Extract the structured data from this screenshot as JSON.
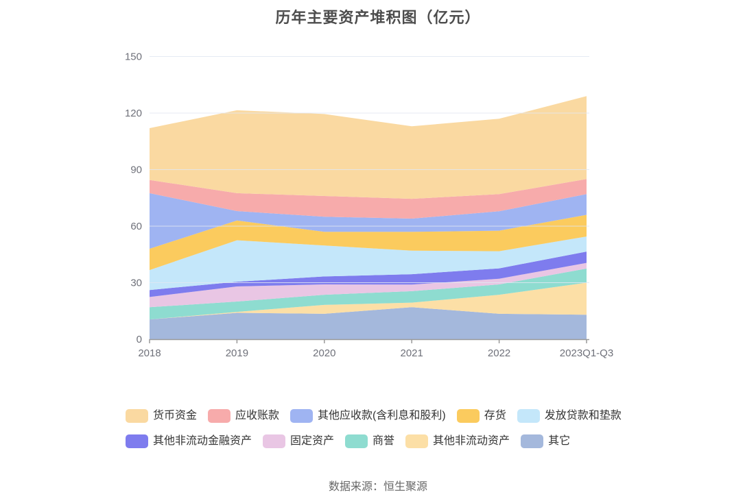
{
  "title": "历年主要资产堆积图（亿元）",
  "source": "数据来源：恒生聚源",
  "chart_data": {
    "type": "area",
    "stacked": true,
    "unit": "亿元",
    "title": "历年主要资产堆积图（亿元）",
    "categories": [
      "2018",
      "2019",
      "2020",
      "2021",
      "2022",
      "2023Q1-Q3"
    ],
    "ylim": [
      0,
      150
    ],
    "yticks": [
      0,
      30,
      60,
      90,
      120,
      150
    ],
    "grid": true,
    "legend_position": "bottom",
    "series": [
      {
        "id": "others",
        "name": "其它",
        "color": "#a4b8dc",
        "values": [
          10.5,
          14,
          13.5,
          17,
          13.5,
          13
        ]
      },
      {
        "id": "other-non-current-assets",
        "name": "其他非流动资产",
        "color": "#fcdfa6",
        "values": [
          0,
          0.5,
          4.7,
          2.4,
          10.1,
          17
        ]
      },
      {
        "id": "goodwill",
        "name": "商誉",
        "color": "#8edcd0",
        "values": [
          6.5,
          5.5,
          5.4,
          6.1,
          5.5,
          7.5
        ]
      },
      {
        "id": "fixed-assets",
        "name": "固定资产",
        "color": "#e9c6e4",
        "values": [
          5.4,
          8,
          5.5,
          3.5,
          3,
          3
        ]
      },
      {
        "id": "other-non-current-financial-assets",
        "name": "其他非流动金融资产",
        "color": "#7e7cee",
        "values": [
          3.7,
          2.5,
          4.2,
          5.5,
          5.5,
          6
        ]
      },
      {
        "id": "loans-and-advances",
        "name": "发放贷款和垫款",
        "color": "#c4e7fa",
        "values": [
          10.6,
          22,
          16.4,
          12.5,
          9.1,
          8
        ]
      },
      {
        "id": "inventory",
        "name": "存货",
        "color": "#fbcb5e",
        "values": [
          11.3,
          10.5,
          7.3,
          10,
          10.9,
          11.5
        ]
      },
      {
        "id": "other-receivables",
        "name": "其他应收款(含利息和股利)",
        "color": "#9fb4f2",
        "values": [
          29.5,
          5,
          8,
          7,
          10.3,
          11
        ]
      },
      {
        "id": "accounts-receivable",
        "name": "应收账款",
        "color": "#f7abab",
        "values": [
          7,
          9.5,
          11,
          10.5,
          9.1,
          8
        ]
      },
      {
        "id": "monetary-funds",
        "name": "货币资金",
        "color": "#fad9a1",
        "values": [
          27.5,
          44,
          43.5,
          38.5,
          40,
          44
        ]
      }
    ],
    "legend_rows": [
      [
        "货币资金",
        "应收账款",
        "其他应收款(含利息和股利)",
        "存货",
        "发放贷款和垫款"
      ],
      [
        "其他非流动金融资产",
        "固定资产",
        "商誉",
        "其他非流动资产",
        "其它"
      ]
    ],
    "axis_colors": {
      "axis_line": "#999999",
      "tick_label": "#6e7079",
      "grid_line": "#e0e6f1"
    }
  }
}
